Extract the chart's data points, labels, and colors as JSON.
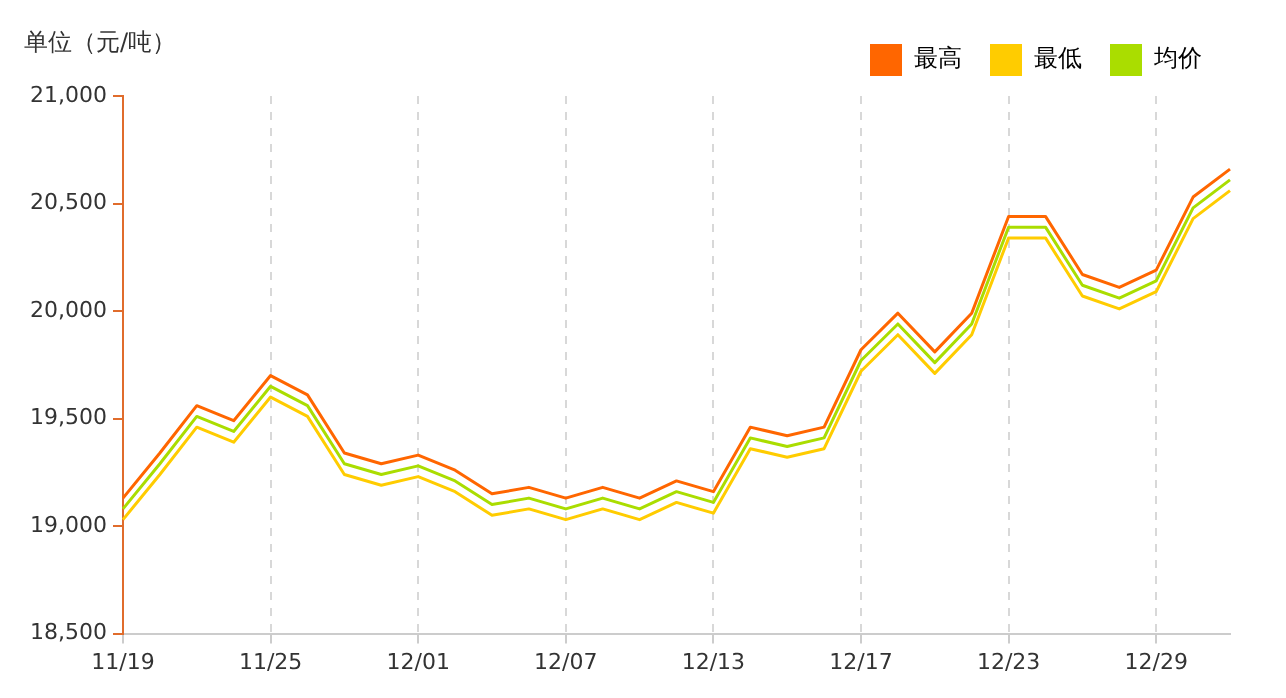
{
  "chart_data": {
    "type": "line",
    "ylabel": "单位（元/吨）",
    "categories": [
      "11/19",
      null,
      null,
      null,
      "11/25",
      null,
      null,
      null,
      "12/01",
      null,
      null,
      null,
      "12/07",
      null,
      null,
      null,
      "12/13",
      null,
      null,
      null,
      "12/17",
      null,
      null,
      null,
      "12/23",
      null,
      null,
      null,
      "12/29",
      null,
      null
    ],
    "series": [
      {
        "name": "最高",
        "color": "#ff6600",
        "values": [
          19130,
          19340,
          19560,
          19490,
          19700,
          19610,
          19340,
          19290,
          19330,
          19260,
          19150,
          19180,
          19130,
          19180,
          19130,
          19210,
          19160,
          19460,
          19420,
          19460,
          19820,
          19990,
          19810,
          19990,
          20440,
          20440,
          20170,
          20110,
          20190,
          20530,
          20660
        ]
      },
      {
        "name": "最低",
        "color": "#ffcc00",
        "values": [
          19030,
          19240,
          19460,
          19390,
          19600,
          19510,
          19240,
          19190,
          19230,
          19160,
          19050,
          19080,
          19030,
          19080,
          19030,
          19110,
          19060,
          19360,
          19320,
          19360,
          19720,
          19890,
          19710,
          19890,
          20340,
          20340,
          20070,
          20010,
          20090,
          20430,
          20560
        ]
      },
      {
        "name": "均价",
        "color": "#aadd00",
        "values": [
          19080,
          19290,
          19510,
          19440,
          19650,
          19560,
          19290,
          19240,
          19280,
          19210,
          19100,
          19130,
          19080,
          19130,
          19080,
          19160,
          19110,
          19410,
          19370,
          19410,
          19770,
          19940,
          19760,
          19940,
          20390,
          20390,
          20120,
          20060,
          20140,
          20480,
          20610
        ]
      }
    ],
    "ylim": [
      18500,
      21000
    ],
    "yticks": [
      {
        "value": 18500,
        "label": "18,500"
      },
      {
        "value": 19000,
        "label": "19,000"
      },
      {
        "value": 19500,
        "label": "19,500"
      },
      {
        "value": 20000,
        "label": "20,000"
      },
      {
        "value": 20500,
        "label": "20,500"
      },
      {
        "value": 21000,
        "label": "21,000"
      }
    ],
    "grid": "x",
    "legend": "top right",
    "marker": "none",
    "line_style": "solid"
  }
}
